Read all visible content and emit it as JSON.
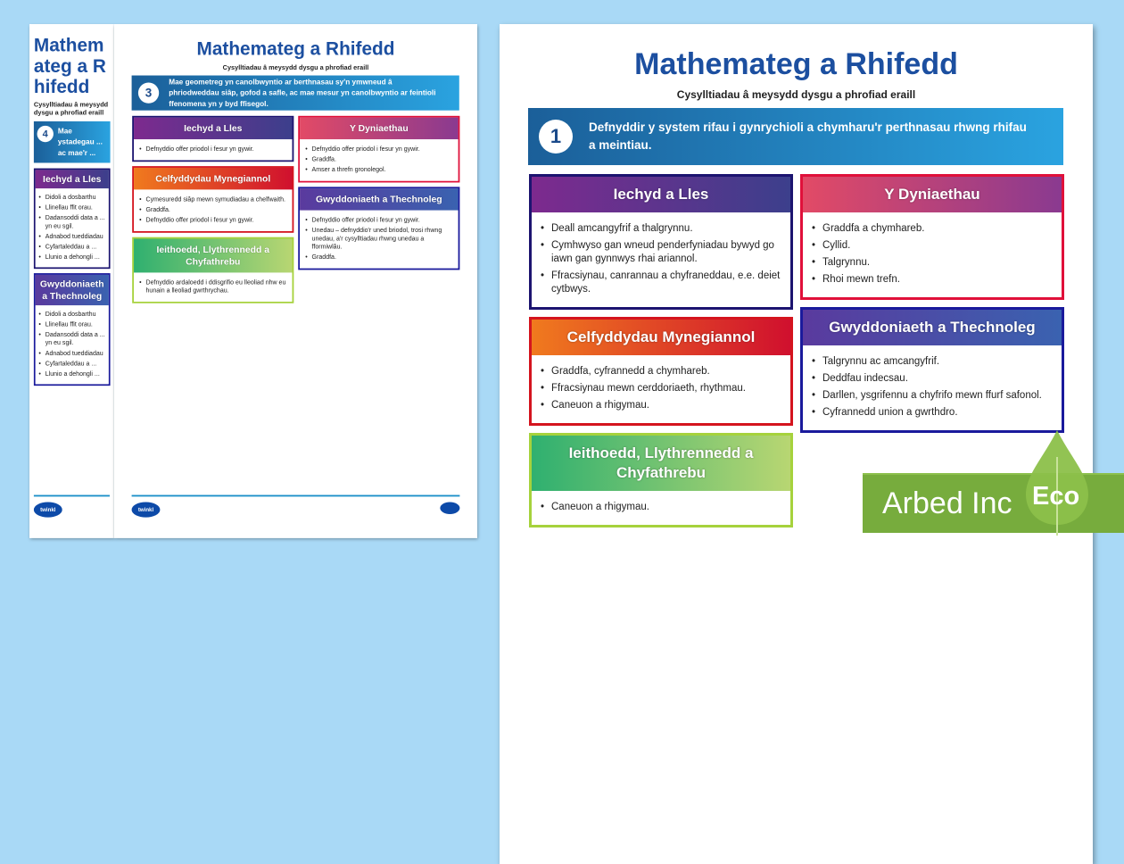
{
  "pages": [
    {
      "id": "page-4",
      "title": "Mathemateg a Rhifedd",
      "subtitle": "Cysylltiadau â meysydd dysgu a phrofiad eraill",
      "number": "4",
      "statement": "Mae ystadegau ... ac mae'r ...",
      "logo": "twinkl",
      "columns": [
        [
          {
            "title": "Iechyd a Lles",
            "color": "purple",
            "items": [
              "Didoli a dosbarthu",
              "Llinellau ffit orau.",
              "Dadansoddi data a ... yn eu sgil.",
              "Adnabod tueddiadau",
              "Cyfartaleddau a ...",
              "Llunio a dehongli ..."
            ]
          },
          {
            "title": "Gwyddoniaeth a Thechnoleg",
            "color": "indigo",
            "items": [
              "Didoli a dosbarthu",
              "Llinellau ffit orau.",
              "Dadansoddi data a ... yn eu sgil.",
              "Adnabod tueddiadau",
              "Cyfartaleddau a ...",
              "Llunio a dehongli ..."
            ]
          }
        ],
        []
      ]
    },
    {
      "id": "page-3",
      "title": "Mathemateg a Rhifedd",
      "subtitle": "Cysylltiadau â meysydd dysgu a phrofiad eraill",
      "number": "3",
      "statement": "Mae geometreg yn canolbwyntio ar berthnasau sy'n ymwneud â phriodweddau siâp, gofod a safle, ac mae mesur yn canolbwyntio ar feintioli ffenomena yn y byd ffisegol.",
      "logo": "twinkl",
      "columns": [
        [
          {
            "title": "Iechyd a Lles",
            "color": "purple",
            "items": [
              "Defnyddio offer priodol i fesur yn gywir."
            ]
          },
          {
            "title": "Celfyddydau Mynegiannol",
            "color": "orange",
            "items": [
              "Cymesuredd siâp mewn symudiadau a chelfwaith.",
              "Graddfa.",
              "Defnyddio offer priodol i fesur yn gywir."
            ]
          },
          {
            "title": "Ieithoedd, Llythrennedd a Chyfathrebu",
            "color": "green",
            "items": [
              "Defnyddio ardaloedd i ddisgrifio eu lleoliad nhw eu hunain a lleoliad gwrthrychau."
            ]
          }
        ],
        [
          {
            "title": "Y Dyniaethau",
            "color": "pink",
            "items": [
              "Defnyddio offer priodol i fesur yn gywir.",
              "Graddfa.",
              "Amser a threfn gronolegol."
            ]
          },
          {
            "title": "Gwyddoniaeth a Thechnoleg",
            "color": "indigo",
            "items": [
              "Defnyddio offer priodol i fesur yn gywir.",
              "Unedau – defnyddio'r uned briodol, trosi rhwng unedau, a'r cysylltiadau rhwng unedau a fformiwlâu.",
              "Graddfa."
            ]
          }
        ]
      ]
    },
    {
      "id": "page-1",
      "title": "Mathemateg a Rhifedd",
      "subtitle": "Cysylltiadau â meysydd dysgu a phrofiad eraill",
      "number": "1",
      "statement": "Defnyddir y system rifau i gynrychioli a chymharu'r perthnasau rhwng rhifau a meintiau.",
      "columns": [
        [
          {
            "title": "Iechyd a Lles",
            "color": "purple",
            "items": [
              "Deall amcangyfrif a thalgrynnu.",
              "Cymhwyso gan wneud penderfyniadau bywyd go iawn gan gynnwys rhai ariannol.",
              "Ffracsiynau, canrannau a chyfraneddau, e.e. deiet cytbwys."
            ]
          },
          {
            "title": "Celfyddydau Mynegiannol",
            "color": "orange",
            "items": [
              "Graddfa, cyfrannedd a chymhareb.",
              "Ffracsiynau mewn cerddoriaeth, rhythmau.",
              "Caneuon a rhigymau."
            ]
          },
          {
            "title": "Ieithoedd, Llythrennedd a Chyfathrebu",
            "color": "green",
            "items": [
              "Caneuon a rhigymau."
            ]
          }
        ],
        [
          {
            "title": "Y Dyniaethau",
            "color": "pink",
            "items": [
              "Graddfa a chymhareb.",
              "Cyllid.",
              "Talgrynnu.",
              "Rhoi mewn trefn."
            ]
          },
          {
            "title": "Gwyddoniaeth a Thechnoleg",
            "color": "indigo",
            "items": [
              "Talgrynnu ac amcangyfrif.",
              "Deddfau indecsau.",
              "Darllen, ysgrifennu a chyfrifo mewn ffurf safonol.",
              "Cyfrannedd union a gwrthdro."
            ]
          }
        ]
      ]
    }
  ],
  "badge": {
    "brand": "Arbed Inc",
    "eco": "Eco",
    "color": "#77ac3d"
  },
  "colors": {
    "background": "#a9d9f6",
    "title": "#1c4fa0",
    "purple": {
      "grad": [
        "#7d2a8e",
        "#3c3f8c"
      ],
      "border": "#1c1470"
    },
    "pink": {
      "grad": [
        "#e24a66",
        "#8a3a90"
      ],
      "border": "#e0103a"
    },
    "orange": {
      "grad": [
        "#f07a1e",
        "#d0102e"
      ],
      "border": "#d4141e"
    },
    "indigo": {
      "grad": [
        "#5a3a9e",
        "#3a62b0"
      ],
      "border": "#1a1a9c"
    },
    "green": {
      "grad": [
        "#2fb070",
        "#b8d672"
      ],
      "border": "#a6d23c"
    }
  }
}
